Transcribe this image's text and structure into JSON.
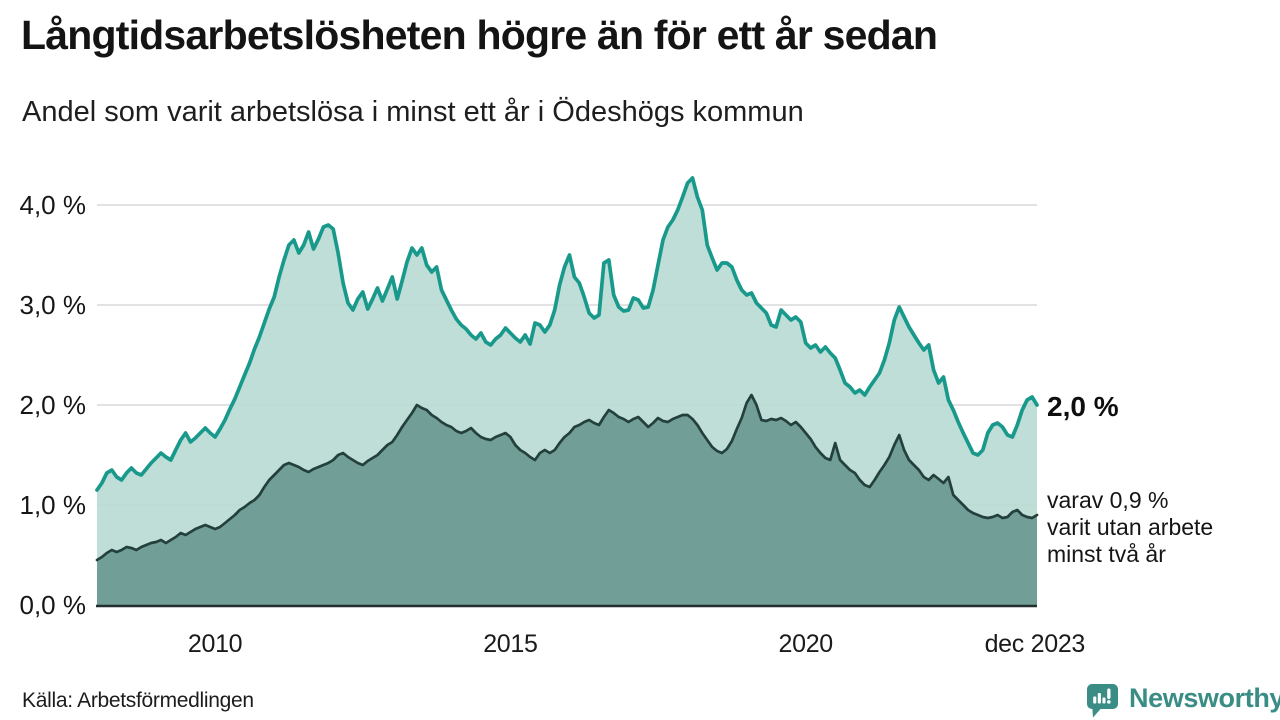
{
  "header": {
    "title": "Långtidsarbetslösheten högre än för ett år sedan",
    "subtitle": "Andel som varit arbetslösa i minst ett år i Ödeshögs kommun"
  },
  "annotations": {
    "end_value_label": "2,0 %",
    "breakdown_label": "varav 0,9 %\nvarit utan arbete\nminst två år"
  },
  "footer": {
    "source": "Källa: Arbetsförmedlingen",
    "brand": "Newsworthy"
  },
  "colors": {
    "line_one_year": "#18998b",
    "fill_one_year": "#b7dad3",
    "line_two_years": "#24403d",
    "fill_two_years": "#719e97",
    "gridline": "#d9d9d9",
    "axis": "#222f2e",
    "brand_teal": "#3a8d84"
  },
  "chart_data": {
    "type": "area",
    "title": "Långtidsarbetslösheten högre än för ett år sedan",
    "subtitle": "Andel som varit arbetslösa i minst ett år i Ödeshögs kommun",
    "unit": "%",
    "x_frequency": "monthly",
    "x_domain": [
      2008.0,
      2023.917
    ],
    "ylim": [
      0,
      4.3
    ],
    "grid": true,
    "legend_position": "right-annotations",
    "yticks": [
      {
        "value": 0,
        "label": "0,0 %"
      },
      {
        "value": 1,
        "label": "1,0 %"
      },
      {
        "value": 2,
        "label": "2,0 %"
      },
      {
        "value": 3,
        "label": "3,0 %"
      },
      {
        "value": 4,
        "label": "4,0 %"
      }
    ],
    "xticks": [
      {
        "t": 2010.0,
        "label": "2010"
      },
      {
        "t": 2015.0,
        "label": "2015"
      },
      {
        "t": 2020.0,
        "label": "2020"
      },
      {
        "t": 2023.88,
        "label": "dec 2023"
      }
    ],
    "series": [
      {
        "name": "Arbetslösa minst ett år",
        "color": "#18998b",
        "fill": "#b7dad3",
        "fill_opacity": 0.9,
        "end_value": 2.0,
        "end_label": "2,0 %",
        "values": [
          1.15,
          1.22,
          1.32,
          1.35,
          1.28,
          1.25,
          1.32,
          1.37,
          1.32,
          1.3,
          1.36,
          1.42,
          1.47,
          1.52,
          1.48,
          1.45,
          1.55,
          1.65,
          1.72,
          1.63,
          1.67,
          1.72,
          1.77,
          1.72,
          1.68,
          1.76,
          1.85,
          1.96,
          2.06,
          2.18,
          2.3,
          2.42,
          2.56,
          2.68,
          2.82,
          2.96,
          3.08,
          3.28,
          3.45,
          3.6,
          3.65,
          3.52,
          3.6,
          3.73,
          3.56,
          3.66,
          3.78,
          3.8,
          3.76,
          3.52,
          3.22,
          3.02,
          2.95,
          3.06,
          3.13,
          2.96,
          3.06,
          3.17,
          3.04,
          3.16,
          3.28,
          3.06,
          3.24,
          3.43,
          3.57,
          3.5,
          3.57,
          3.4,
          3.33,
          3.38,
          3.15,
          3.05,
          2.95,
          2.86,
          2.8,
          2.76,
          2.7,
          2.66,
          2.72,
          2.63,
          2.6,
          2.66,
          2.7,
          2.77,
          2.72,
          2.67,
          2.63,
          2.7,
          2.61,
          2.82,
          2.8,
          2.73,
          2.8,
          2.95,
          3.2,
          3.38,
          3.5,
          3.28,
          3.22,
          3.08,
          2.92,
          2.87,
          2.9,
          3.42,
          3.45,
          3.1,
          2.98,
          2.94,
          2.95,
          3.07,
          3.05,
          2.97,
          2.98,
          3.15,
          3.4,
          3.65,
          3.78,
          3.85,
          3.95,
          4.08,
          4.22,
          4.27,
          4.08,
          3.95,
          3.6,
          3.47,
          3.35,
          3.42,
          3.42,
          3.38,
          3.25,
          3.15,
          3.1,
          3.12,
          3.02,
          2.97,
          2.92,
          2.8,
          2.78,
          2.95,
          2.9,
          2.85,
          2.88,
          2.83,
          2.62,
          2.57,
          2.6,
          2.53,
          2.58,
          2.52,
          2.47,
          2.35,
          2.22,
          2.18,
          2.12,
          2.15,
          2.1,
          2.18,
          2.25,
          2.32,
          2.45,
          2.62,
          2.85,
          2.98,
          2.88,
          2.78,
          2.7,
          2.62,
          2.55,
          2.6,
          2.35,
          2.22,
          2.28,
          2.05,
          1.95,
          1.83,
          1.72,
          1.62,
          1.52,
          1.5,
          1.55,
          1.72,
          1.8,
          1.82,
          1.78,
          1.7,
          1.68,
          1.8,
          1.95,
          2.05,
          2.08,
          2.0
        ]
      },
      {
        "name": "varav utan arbete minst två år",
        "color": "#24403d",
        "fill": "#719e97",
        "fill_opacity": 1,
        "end_value": 0.9,
        "end_label": "0,9 %",
        "values": [
          0.45,
          0.48,
          0.52,
          0.55,
          0.53,
          0.55,
          0.58,
          0.57,
          0.55,
          0.58,
          0.6,
          0.62,
          0.63,
          0.65,
          0.62,
          0.65,
          0.68,
          0.72,
          0.7,
          0.73,
          0.76,
          0.78,
          0.8,
          0.78,
          0.76,
          0.78,
          0.82,
          0.86,
          0.9,
          0.95,
          0.98,
          1.02,
          1.05,
          1.1,
          1.18,
          1.25,
          1.3,
          1.35,
          1.4,
          1.42,
          1.4,
          1.38,
          1.35,
          1.33,
          1.36,
          1.38,
          1.4,
          1.42,
          1.45,
          1.5,
          1.52,
          1.48,
          1.45,
          1.42,
          1.4,
          1.44,
          1.47,
          1.5,
          1.55,
          1.6,
          1.63,
          1.7,
          1.78,
          1.85,
          1.92,
          2.0,
          1.97,
          1.95,
          1.9,
          1.87,
          1.83,
          1.8,
          1.78,
          1.74,
          1.72,
          1.74,
          1.77,
          1.72,
          1.68,
          1.66,
          1.65,
          1.68,
          1.7,
          1.72,
          1.68,
          1.6,
          1.55,
          1.52,
          1.48,
          1.45,
          1.52,
          1.55,
          1.52,
          1.55,
          1.62,
          1.68,
          1.72,
          1.78,
          1.8,
          1.83,
          1.85,
          1.82,
          1.8,
          1.88,
          1.95,
          1.92,
          1.88,
          1.86,
          1.83,
          1.86,
          1.88,
          1.83,
          1.78,
          1.82,
          1.87,
          1.84,
          1.83,
          1.86,
          1.88,
          1.9,
          1.9,
          1.86,
          1.8,
          1.72,
          1.65,
          1.58,
          1.54,
          1.52,
          1.56,
          1.64,
          1.76,
          1.87,
          2.02,
          2.1,
          2.0,
          1.85,
          1.84,
          1.86,
          1.85,
          1.87,
          1.84,
          1.8,
          1.83,
          1.78,
          1.72,
          1.66,
          1.58,
          1.52,
          1.47,
          1.45,
          1.62,
          1.45,
          1.4,
          1.35,
          1.32,
          1.25,
          1.2,
          1.18,
          1.25,
          1.33,
          1.4,
          1.48,
          1.6,
          1.7,
          1.55,
          1.45,
          1.4,
          1.35,
          1.28,
          1.25,
          1.3,
          1.26,
          1.22,
          1.28,
          1.1,
          1.05,
          1.0,
          0.95,
          0.92,
          0.9,
          0.88,
          0.87,
          0.88,
          0.9,
          0.87,
          0.88,
          0.93,
          0.95,
          0.9,
          0.88,
          0.87,
          0.9
        ]
      }
    ]
  }
}
